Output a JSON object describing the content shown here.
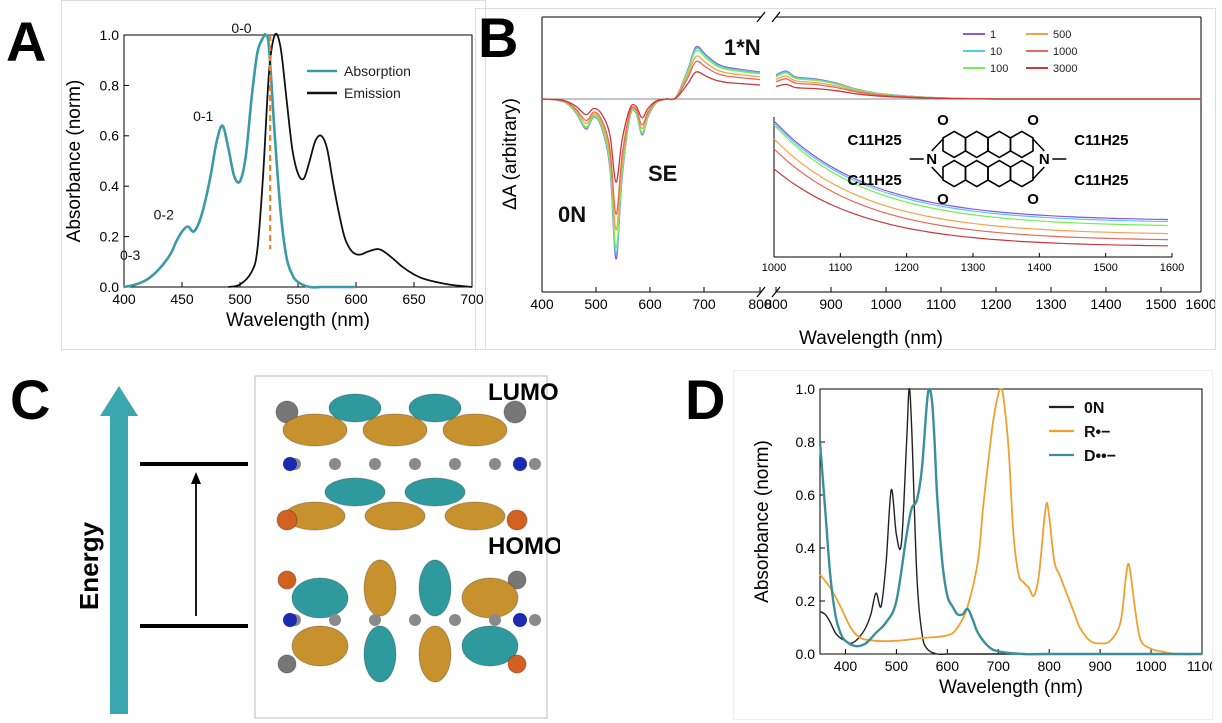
{
  "panels": {
    "a": {
      "letter": "A"
    },
    "b": {
      "letter": "B"
    },
    "c": {
      "letter": "C"
    },
    "d": {
      "letter": "D"
    }
  },
  "chart_data": [
    {
      "id": "A",
      "type": "line",
      "xlabel": "Wavelength (nm)",
      "ylabel": "Absorbance (norm)",
      "xlim": [
        400,
        700
      ],
      "ylim": [
        0,
        1.0
      ],
      "xticks": [
        "400",
        "450",
        "500",
        "550",
        "600",
        "650",
        "700"
      ],
      "yticks": [
        "0.0",
        "0.2",
        "0.4",
        "0.6",
        "0.8",
        "1.0"
      ],
      "legend_position": "upper-right",
      "series": [
        {
          "name": "Absorption",
          "color": "#3a9aa5",
          "x": [
            400,
            410,
            420,
            430,
            440,
            445,
            450,
            455,
            460,
            465,
            470,
            475,
            480,
            485,
            490,
            495,
            500,
            505,
            510,
            515,
            520,
            522,
            525,
            530,
            535,
            540,
            545,
            550,
            560,
            570,
            580,
            590,
            600
          ],
          "y": [
            0.0,
            0.01,
            0.03,
            0.07,
            0.13,
            0.18,
            0.22,
            0.24,
            0.22,
            0.26,
            0.34,
            0.45,
            0.58,
            0.64,
            0.55,
            0.44,
            0.42,
            0.52,
            0.75,
            0.93,
            0.99,
            1.0,
            0.95,
            0.6,
            0.3,
            0.12,
            0.05,
            0.02,
            0.0,
            0.0,
            0.0,
            0.0,
            0.0
          ]
        },
        {
          "name": "Emission",
          "color": "#111111",
          "x": [
            490,
            500,
            510,
            515,
            520,
            525,
            530,
            535,
            540,
            545,
            550,
            555,
            560,
            565,
            570,
            575,
            580,
            585,
            590,
            595,
            600,
            605,
            610,
            620,
            630,
            640,
            650,
            660,
            680,
            700
          ],
          "y": [
            0.0,
            0.01,
            0.06,
            0.15,
            0.45,
            0.85,
            1.0,
            0.95,
            0.75,
            0.55,
            0.45,
            0.43,
            0.5,
            0.58,
            0.6,
            0.55,
            0.42,
            0.3,
            0.2,
            0.15,
            0.13,
            0.13,
            0.14,
            0.15,
            0.12,
            0.08,
            0.05,
            0.03,
            0.01,
            0.0
          ]
        }
      ],
      "vline": {
        "x": 526,
        "color": "#f08020"
      },
      "annotations": [
        {
          "text": "0-0",
          "x": 510,
          "y": 1.0
        },
        {
          "text": "0-1",
          "x": 477,
          "y": 0.65
        },
        {
          "text": "0-2",
          "x": 443,
          "y": 0.26
        },
        {
          "text": "0-3",
          "x": 414,
          "y": 0.1
        }
      ]
    },
    {
      "id": "B",
      "type": "line",
      "xlabel": "Wavelength (nm)",
      "ylabel": "ΔA (arbitrary)",
      "xticks": [
        "400",
        "500",
        "600",
        "700",
        "800",
        "800",
        "900",
        "1000",
        "1100",
        "1200",
        "1300",
        "1400",
        "1500",
        "1600"
      ],
      "legend_position": "upper-right",
      "legend": [
        {
          "label": "1",
          "color": "#8a55e8"
        },
        {
          "label": "10",
          "color": "#55ccdd"
        },
        {
          "label": "100",
          "color": "#77ee55"
        },
        {
          "label": "500",
          "color": "#f4a24a"
        },
        {
          "label": "1000",
          "color": "#e8685a"
        },
        {
          "label": "3000",
          "color": "#c8383a"
        }
      ],
      "annotations": [
        {
          "text": "1*N"
        },
        {
          "text": "SE"
        },
        {
          "text": "0N"
        }
      ],
      "inset": {
        "xticks": [
          "1000",
          "1100",
          "1200",
          "1300",
          "1400",
          "1500",
          "1600"
        ],
        "molecule_labels": [
          "C11H25",
          "C11H25",
          "C11H25",
          "C11H25",
          "N",
          "N",
          "O",
          "O",
          "O",
          "O"
        ]
      }
    },
    {
      "id": "D",
      "type": "line",
      "xlabel": "Wavelength (nm)",
      "ylabel": "Absorbance (norm)",
      "xlim": [
        350,
        1100
      ],
      "ylim": [
        0,
        1.0
      ],
      "xticks": [
        "400",
        "500",
        "600",
        "700",
        "800",
        "900",
        "1000",
        "1100"
      ],
      "yticks": [
        "0.0",
        "0.2",
        "0.4",
        "0.6",
        "0.8",
        "1.0"
      ],
      "legend_position": "upper-right",
      "series": [
        {
          "name": "0N",
          "color": "#222222",
          "x": [
            350,
            360,
            370,
            380,
            390,
            400,
            410,
            420,
            430,
            440,
            450,
            460,
            470,
            480,
            490,
            500,
            510,
            520,
            525,
            530,
            540,
            550,
            560,
            580,
            600,
            650,
            700,
            800,
            1100
          ],
          "y": [
            0.16,
            0.15,
            0.12,
            0.08,
            0.06,
            0.05,
            0.04,
            0.05,
            0.07,
            0.1,
            0.15,
            0.23,
            0.18,
            0.35,
            0.62,
            0.45,
            0.42,
            0.8,
            1.0,
            0.85,
            0.3,
            0.08,
            0.02,
            0.0,
            0.0,
            0.0,
            0.0,
            0.0,
            0.0
          ]
        },
        {
          "name": "R•−",
          "color": "#f0a030",
          "x": [
            350,
            370,
            390,
            410,
            430,
            460,
            500,
            550,
            600,
            620,
            640,
            660,
            670,
            680,
            690,
            700,
            705,
            710,
            720,
            730,
            740,
            750,
            760,
            770,
            780,
            790,
            795,
            800,
            810,
            820,
            830,
            840,
            850,
            860,
            880,
            900,
            920,
            940,
            950,
            955,
            960,
            970,
            980,
            1000,
            1020,
            1050,
            1100
          ],
          "y": [
            0.3,
            0.25,
            0.18,
            0.1,
            0.06,
            0.05,
            0.05,
            0.06,
            0.07,
            0.1,
            0.18,
            0.35,
            0.55,
            0.72,
            0.88,
            0.98,
            1.0,
            0.97,
            0.78,
            0.45,
            0.3,
            0.27,
            0.25,
            0.22,
            0.3,
            0.5,
            0.57,
            0.52,
            0.35,
            0.3,
            0.25,
            0.2,
            0.15,
            0.1,
            0.05,
            0.04,
            0.05,
            0.12,
            0.28,
            0.34,
            0.3,
            0.15,
            0.05,
            0.02,
            0.01,
            0.0,
            0.0
          ]
        },
        {
          "name": "D••−",
          "color": "#3a8f9a",
          "x": [
            350,
            360,
            370,
            380,
            390,
            400,
            420,
            440,
            460,
            480,
            500,
            520,
            530,
            540,
            550,
            560,
            565,
            570,
            575,
            580,
            590,
            600,
            610,
            620,
            630,
            640,
            650,
            660,
            680,
            700,
            750,
            800,
            1100
          ],
          "y": [
            0.8,
            0.55,
            0.3,
            0.15,
            0.08,
            0.05,
            0.03,
            0.04,
            0.08,
            0.12,
            0.2,
            0.45,
            0.55,
            0.58,
            0.7,
            0.95,
            1.0,
            0.95,
            0.8,
            0.6,
            0.35,
            0.22,
            0.18,
            0.15,
            0.15,
            0.17,
            0.13,
            0.08,
            0.03,
            0.01,
            0.0,
            0.0,
            0.0
          ]
        }
      ]
    }
  ],
  "panel_c": {
    "axis_label": "Energy",
    "lumo_label": "LUMO",
    "homo_label": "HOMO"
  }
}
